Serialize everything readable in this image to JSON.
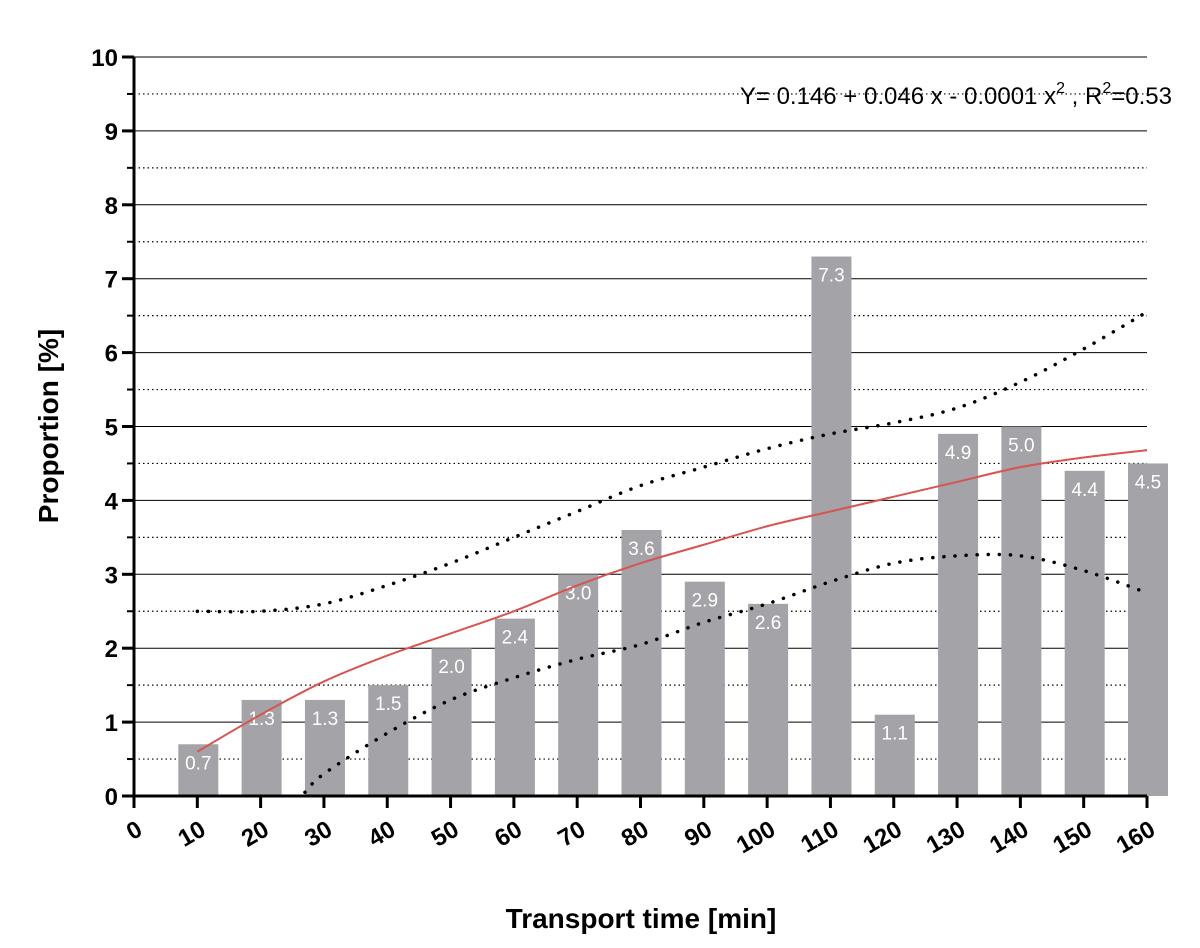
{
  "chart_data": {
    "type": "bar",
    "x": [
      10,
      20,
      30,
      40,
      50,
      60,
      70,
      80,
      90,
      100,
      110,
      120,
      130,
      140,
      150,
      160
    ],
    "values": [
      0.7,
      1.3,
      1.3,
      1.5,
      2.0,
      2.4,
      3.0,
      3.6,
      2.9,
      2.6,
      7.3,
      1.1,
      4.9,
      5.0,
      4.4,
      4.5
    ],
    "value_labels": [
      "0.7",
      "1.3",
      "1.3",
      "1.5",
      "2.0",
      "2.4",
      "3.0",
      "3.6",
      "2.9",
      "2.6",
      "7.3",
      "1.1",
      "4.9",
      "5.0",
      "4.4",
      "4.5"
    ],
    "xlabel": "Transport time [min]",
    "ylabel": "Proportion [%]",
    "xlim": [
      0,
      160
    ],
    "ylim": [
      0,
      10
    ],
    "x_ticks": [
      "0",
      "10",
      "20",
      "30",
      "40",
      "50",
      "60",
      "70",
      "80",
      "90",
      "100",
      "110",
      "120",
      "130",
      "140",
      "150",
      "160"
    ],
    "y_ticks": [
      "0",
      "1",
      "2",
      "3",
      "4",
      "5",
      "6",
      "7",
      "8",
      "9",
      "10"
    ],
    "grid": {
      "major": "solid",
      "minor": "dotted"
    },
    "fit": {
      "label_main": "Y= 0.146 + 0.046 x - 0.0001 x",
      "label_sup1": "2",
      "label_mid": " , R",
      "label_sup2": "2",
      "label_end": "=0.53",
      "line_color": "#d9534f",
      "points": [
        [
          10,
          0.6
        ],
        [
          20,
          1.1
        ],
        [
          30,
          1.55
        ],
        [
          40,
          1.9
        ],
        [
          50,
          2.2
        ],
        [
          60,
          2.5
        ],
        [
          70,
          2.85
        ],
        [
          80,
          3.15
        ],
        [
          90,
          3.4
        ],
        [
          100,
          3.65
        ],
        [
          110,
          3.85
        ],
        [
          120,
          4.05
        ],
        [
          130,
          4.25
        ],
        [
          140,
          4.45
        ],
        [
          150,
          4.58
        ],
        [
          160,
          4.68
        ]
      ]
    },
    "ci_upper": [
      [
        10,
        2.5
      ],
      [
        20,
        2.5
      ],
      [
        30,
        2.6
      ],
      [
        40,
        2.85
      ],
      [
        50,
        3.15
      ],
      [
        60,
        3.5
      ],
      [
        70,
        3.85
      ],
      [
        80,
        4.2
      ],
      [
        90,
        4.45
      ],
      [
        100,
        4.7
      ],
      [
        110,
        4.9
      ],
      [
        120,
        5.05
      ],
      [
        130,
        5.25
      ],
      [
        140,
        5.6
      ],
      [
        150,
        6.05
      ],
      [
        160,
        6.55
      ]
    ],
    "ci_lower": [
      [
        27,
        0.05
      ],
      [
        30,
        0.3
      ],
      [
        40,
        0.85
      ],
      [
        50,
        1.3
      ],
      [
        60,
        1.6
      ],
      [
        70,
        1.85
      ],
      [
        80,
        2.05
      ],
      [
        90,
        2.35
      ],
      [
        100,
        2.6
      ],
      [
        110,
        2.9
      ],
      [
        120,
        3.15
      ],
      [
        130,
        3.25
      ],
      [
        140,
        3.25
      ],
      [
        150,
        3.05
      ],
      [
        160,
        2.75
      ]
    ],
    "colors": {
      "bar": "#a3a3a8",
      "bar_label": "#ffffff",
      "fit": "#d9534f",
      "ci": "#000000"
    }
  }
}
